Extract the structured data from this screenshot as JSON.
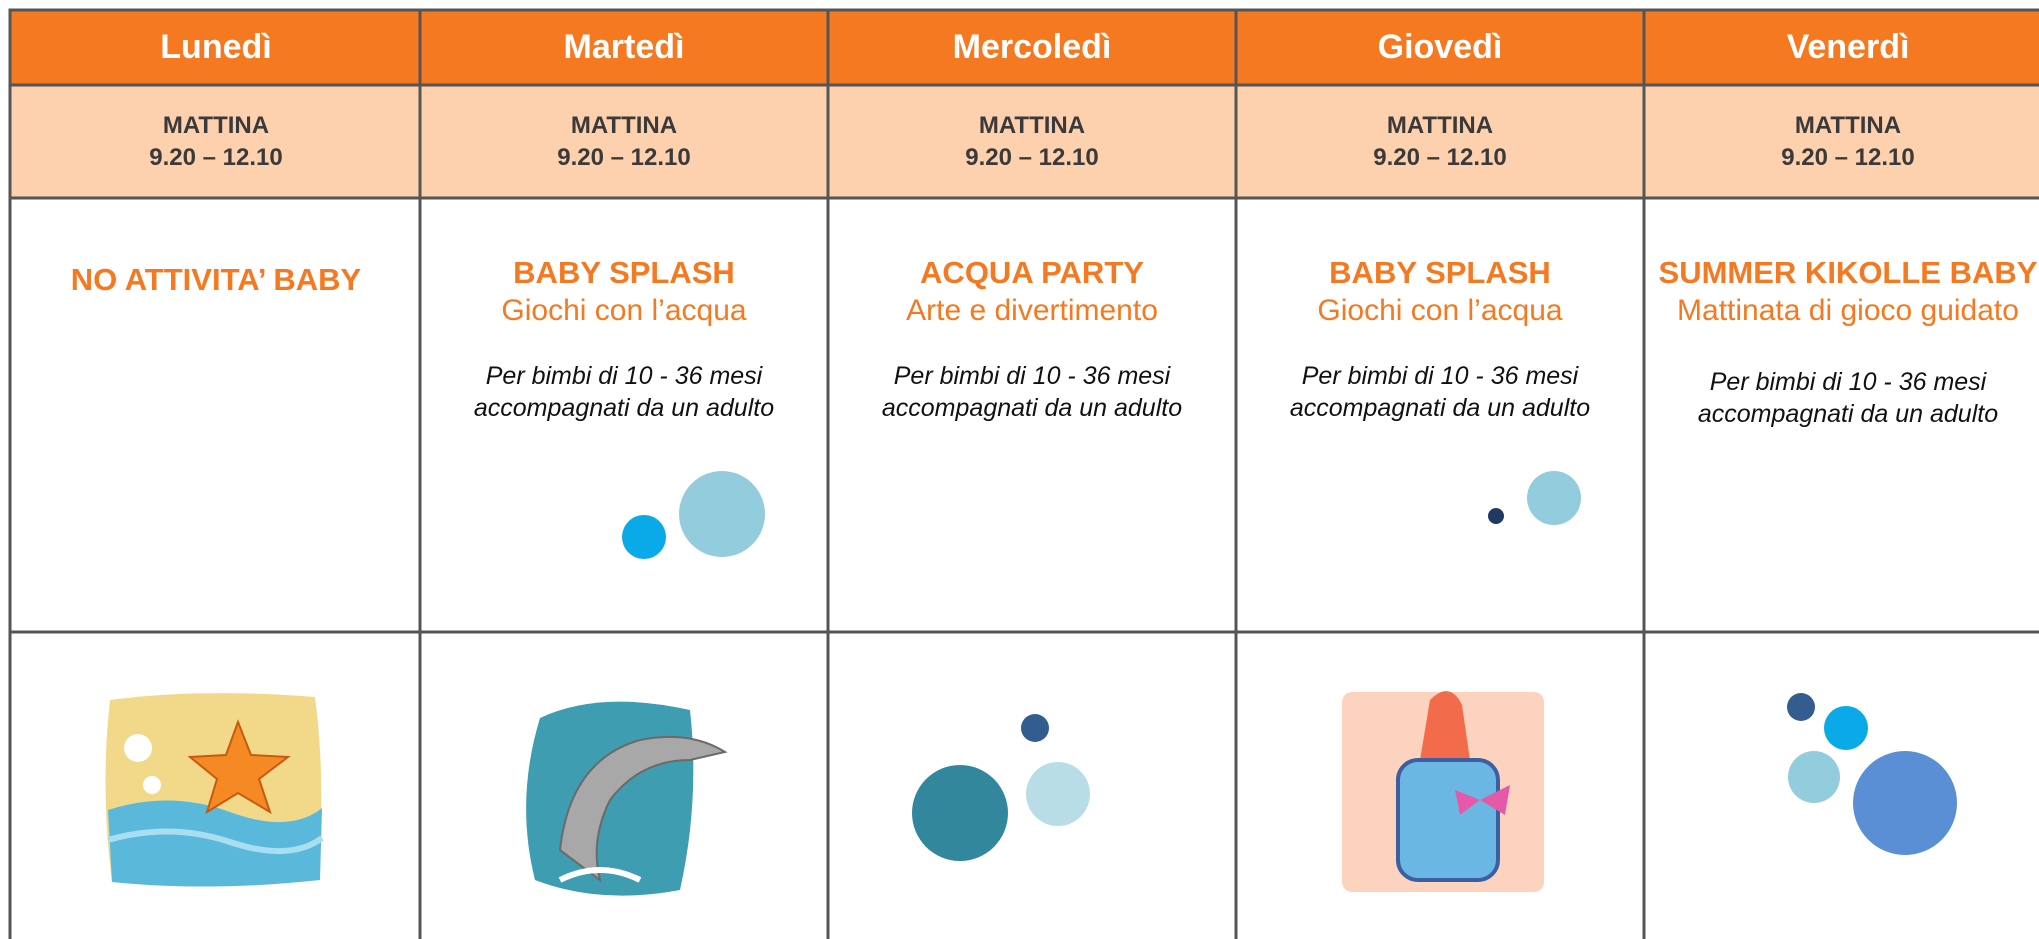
{
  "days": [
    {
      "name": "Lunedì",
      "session": "MATTINA",
      "time": "9.20 – 12.10",
      "activity": {
        "title": "NO ATTIVITA’ BABY"
      }
    },
    {
      "name": "Martedì",
      "session": "MATTINA",
      "time": "9.20 – 12.10",
      "activity": {
        "title": "BABY SPLASH",
        "subtitle": "Giochi con l’acqua",
        "note": [
          "Per bimbi di 10 - 36 mesi",
          "accompagnati da un adulto"
        ]
      }
    },
    {
      "name": "Mercoledì",
      "session": "MATTINA",
      "time": "9.20 – 12.10",
      "activity": {
        "title": "ACQUA PARTY",
        "subtitle": "Arte e divertimento",
        "note": [
          "Per bimbi di 10 - 36 mesi",
          "accompagnati da un adulto"
        ]
      }
    },
    {
      "name": "Giovedì",
      "session": "MATTINA",
      "time": "9.20 – 12.10",
      "activity": {
        "title": "BABY SPLASH",
        "subtitle": "Giochi con l’acqua",
        "note": [
          "Per bimbi di 10 - 36 mesi",
          "accompagnati da un adulto"
        ]
      }
    },
    {
      "name": "Venerdì",
      "session": "MATTINA",
      "time": "9.20 – 12.10",
      "activity": {
        "title": "SUMMER KIKOLLE BABY",
        "subtitle": "Mattinata di gioco guidato",
        "note": [
          "Per bimbi di 10 - 36 mesi",
          "accompagnati da un adulto"
        ]
      }
    }
  ]
}
